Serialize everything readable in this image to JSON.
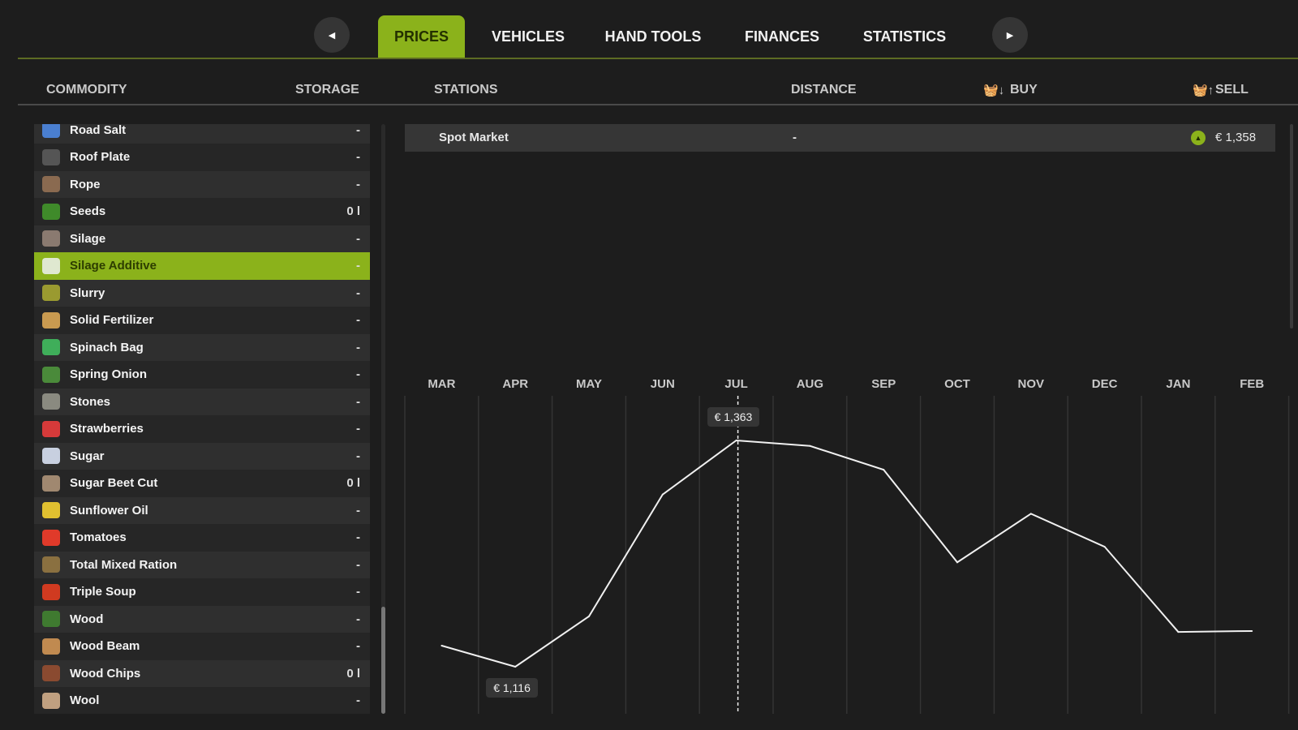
{
  "tabs": {
    "items": [
      "PRICES",
      "VEHICLES",
      "HAND TOOLS",
      "FINANCES",
      "STATISTICS"
    ],
    "active": "PRICES",
    "prev_icon": "triangle-left",
    "next_icon": "triangle-right"
  },
  "headers": {
    "commodity": "COMMODITY",
    "storage": "STORAGE",
    "stations": "STATIONS",
    "distance": "DISTANCE",
    "buy": "BUY",
    "sell": "SELL",
    "buy_icon": "basket-down",
    "sell_icon": "basket-up"
  },
  "commodities": [
    {
      "name": "Road Salt",
      "storage": "-",
      "icon": "road-salt",
      "color": "#4a7fd0"
    },
    {
      "name": "Roof Plate",
      "storage": "-",
      "icon": "roof-plate",
      "color": "#555"
    },
    {
      "name": "Rope",
      "storage": "-",
      "icon": "rope",
      "color": "#8a6a50"
    },
    {
      "name": "Seeds",
      "storage": "0 l",
      "icon": "seeds",
      "color": "#3f8a2a"
    },
    {
      "name": "Silage",
      "storage": "-",
      "icon": "silage",
      "color": "#8a7a70"
    },
    {
      "name": "Silage Additive",
      "storage": "-",
      "icon": "silage-additive",
      "color": "#dfe8d0"
    },
    {
      "name": "Slurry",
      "storage": "-",
      "icon": "slurry",
      "color": "#9a9a30"
    },
    {
      "name": "Solid Fertilizer",
      "storage": "-",
      "icon": "solid-fertilizer",
      "color": "#c99a50"
    },
    {
      "name": "Spinach Bag",
      "storage": "-",
      "icon": "spinach-bag",
      "color": "#3fae5a"
    },
    {
      "name": "Spring Onion",
      "storage": "-",
      "icon": "spring-onion",
      "color": "#4a8a3a"
    },
    {
      "name": "Stones",
      "storage": "-",
      "icon": "stones",
      "color": "#8a8a80"
    },
    {
      "name": "Strawberries",
      "storage": "-",
      "icon": "strawberries",
      "color": "#d63a3a"
    },
    {
      "name": "Sugar",
      "storage": "-",
      "icon": "sugar",
      "color": "#c8d0e0"
    },
    {
      "name": "Sugar Beet Cut",
      "storage": "0 l",
      "icon": "sugar-beet-cut",
      "color": "#a08870"
    },
    {
      "name": "Sunflower Oil",
      "storage": "-",
      "icon": "sunflower-oil",
      "color": "#e0c030"
    },
    {
      "name": "Tomatoes",
      "storage": "-",
      "icon": "tomatoes",
      "color": "#e03a2a"
    },
    {
      "name": "Total Mixed Ration",
      "storage": "-",
      "icon": "total-mixed-ration",
      "color": "#8a7040"
    },
    {
      "name": "Triple Soup",
      "storage": "-",
      "icon": "triple-soup",
      "color": "#d03a20"
    },
    {
      "name": "Wood",
      "storage": "-",
      "icon": "wood",
      "color": "#3f7a30"
    },
    {
      "name": "Wood Beam",
      "storage": "-",
      "icon": "wood-beam",
      "color": "#c08a50"
    },
    {
      "name": "Wood Chips",
      "storage": "0 l",
      "icon": "wood-chips",
      "color": "#8a4a30"
    },
    {
      "name": "Wool",
      "storage": "-",
      "icon": "wool",
      "color": "#c0a080"
    }
  ],
  "selected": "Silage Additive",
  "station": {
    "name": "Spot Market",
    "distance": "-",
    "sell_price": "€ 1,358",
    "trend_icon": "trend-up"
  },
  "colors": {
    "accent": "#8bb21b",
    "background": "#1d1d1d",
    "row": "#2b2b2b"
  },
  "chart_data": {
    "type": "line",
    "categories": [
      "MAR",
      "APR",
      "MAY",
      "JUN",
      "JUL",
      "AUG",
      "SEP",
      "OCT",
      "NOV",
      "DEC",
      "JAN",
      "FEB"
    ],
    "values": [
      1139,
      1116,
      1171,
      1304,
      1363,
      1357,
      1331,
      1230,
      1283,
      1247,
      1154,
      1155
    ],
    "annotations": [
      {
        "month": "JUL",
        "label": "€ 1,363",
        "type": "max",
        "marker": "dashed-vertical"
      },
      {
        "month": "APR",
        "label": "€ 1,116",
        "type": "min"
      }
    ],
    "grid": "vertical"
  }
}
